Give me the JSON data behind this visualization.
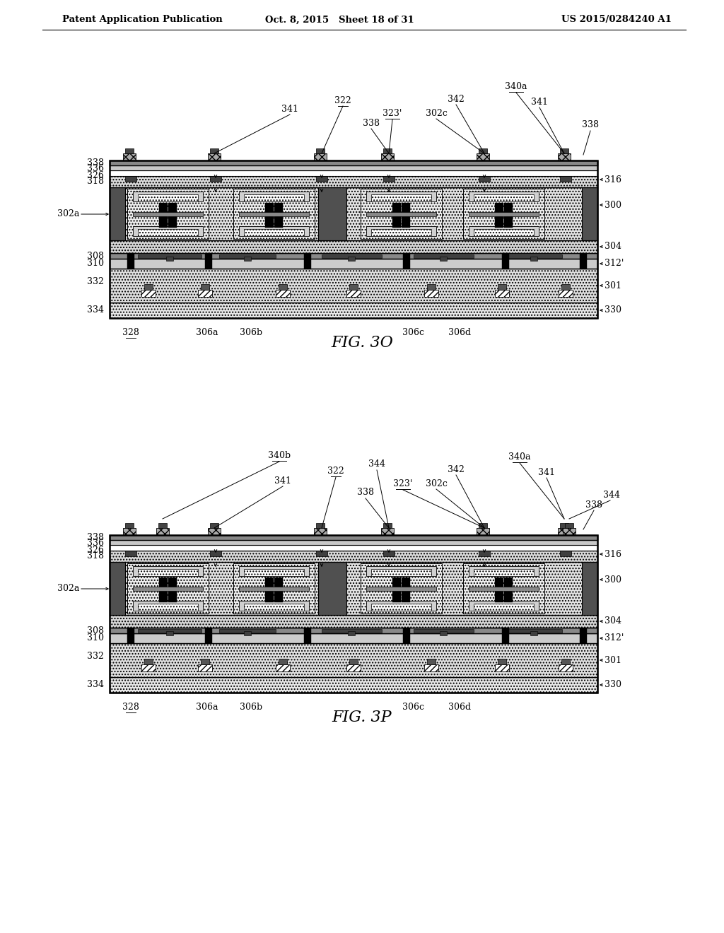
{
  "page_header_left": "Patent Application Publication",
  "page_header_mid": "Oct. 8, 2015   Sheet 18 of 31",
  "page_header_right": "US 2015/0284240 A1",
  "fig_o_caption": "FIG. 3O",
  "fig_p_caption": "FIG. 3P",
  "bg_color": "#ffffff"
}
